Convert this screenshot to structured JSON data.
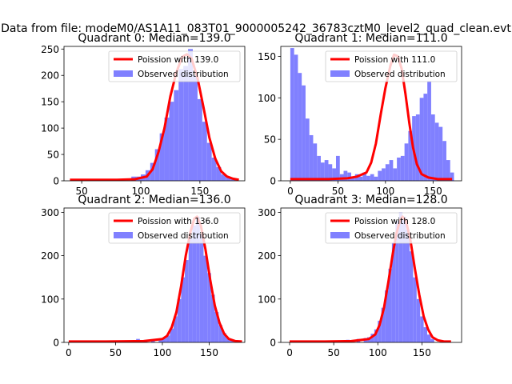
{
  "suptitle": "Data from file: modeM0/AS1A11_083T01_9000005242_36783cztM0_level2_quad_clean.evt",
  "colors": {
    "model": "#ff0000",
    "observed": "#8080ff"
  },
  "chart_data": [
    {
      "type": "bar",
      "title": "Quadrant 0: Median=139.0",
      "median": 139.0,
      "legend": [
        "Poission with 139.0",
        "Observed distribution"
      ],
      "legend_position": "top-right",
      "xlim": [
        35,
        188
      ],
      "ylim": [
        0,
        255
      ],
      "xticks": [
        50,
        100,
        150
      ],
      "yticks": [
        0,
        50,
        100,
        150,
        200,
        250
      ],
      "bin_width": 4,
      "bins": [
        [
          92,
          8
        ],
        [
          96,
          8
        ],
        [
          100,
          12
        ],
        [
          104,
          20
        ],
        [
          108,
          34
        ],
        [
          112,
          60
        ],
        [
          116,
          90
        ],
        [
          120,
          120
        ],
        [
          124,
          150
        ],
        [
          128,
          172
        ],
        [
          132,
          212
        ],
        [
          136,
          218
        ],
        [
          140,
          250
        ],
        [
          144,
          200
        ],
        [
          148,
          155
        ],
        [
          152,
          112
        ],
        [
          156,
          72
        ],
        [
          160,
          44
        ],
        [
          164,
          26
        ],
        [
          168,
          12
        ],
        [
          172,
          6
        ],
        [
          176,
          4
        ]
      ],
      "model": [
        [
          40,
          2
        ],
        [
          60,
          2
        ],
        [
          80,
          2
        ],
        [
          95,
          3
        ],
        [
          105,
          8
        ],
        [
          110,
          22
        ],
        [
          115,
          55
        ],
        [
          120,
          100
        ],
        [
          125,
          160
        ],
        [
          130,
          205
        ],
        [
          135,
          235
        ],
        [
          139,
          240
        ],
        [
          143,
          232
        ],
        [
          148,
          195
        ],
        [
          153,
          140
        ],
        [
          158,
          82
        ],
        [
          163,
          42
        ],
        [
          168,
          18
        ],
        [
          173,
          8
        ],
        [
          178,
          4
        ],
        [
          183,
          2
        ]
      ]
    },
    {
      "type": "bar",
      "title": "Quadrant 1: Median=111.0",
      "median": 111.0,
      "legend": [
        "Poission with 111.0",
        "Observed distribution"
      ],
      "legend_position": "top-right",
      "xlim": [
        -10,
        180
      ],
      "ylim": [
        0,
        162
      ],
      "xticks": [
        0,
        50,
        100,
        150
      ],
      "yticks": [
        0,
        50,
        100,
        150
      ],
      "bin_width": 4,
      "bins": [
        [
          0,
          160
        ],
        [
          4,
          152
        ],
        [
          8,
          130
        ],
        [
          12,
          115
        ],
        [
          16,
          75
        ],
        [
          20,
          55
        ],
        [
          24,
          45
        ],
        [
          28,
          30
        ],
        [
          32,
          22
        ],
        [
          36,
          25
        ],
        [
          40,
          20
        ],
        [
          44,
          15
        ],
        [
          48,
          30
        ],
        [
          52,
          8
        ],
        [
          56,
          12
        ],
        [
          60,
          10
        ],
        [
          64,
          5
        ],
        [
          68,
          8
        ],
        [
          72,
          5
        ],
        [
          76,
          10
        ],
        [
          80,
          6
        ],
        [
          84,
          8
        ],
        [
          88,
          5
        ],
        [
          92,
          12
        ],
        [
          96,
          15
        ],
        [
          100,
          20
        ],
        [
          104,
          25
        ],
        [
          108,
          15
        ],
        [
          112,
          28
        ],
        [
          116,
          30
        ],
        [
          120,
          45
        ],
        [
          124,
          60
        ],
        [
          128,
          78
        ],
        [
          132,
          80
        ],
        [
          136,
          100
        ],
        [
          140,
          105
        ],
        [
          144,
          120
        ],
        [
          148,
          80
        ],
        [
          152,
          70
        ],
        [
          156,
          65
        ],
        [
          160,
          48
        ],
        [
          164,
          25
        ],
        [
          168,
          10
        ]
      ],
      "model": [
        [
          0,
          2
        ],
        [
          20,
          2
        ],
        [
          40,
          2
        ],
        [
          60,
          3
        ],
        [
          70,
          5
        ],
        [
          80,
          10
        ],
        [
          85,
          22
        ],
        [
          90,
          45
        ],
        [
          95,
          80
        ],
        [
          100,
          112
        ],
        [
          105,
          138
        ],
        [
          109,
          152
        ],
        [
          113,
          150
        ],
        [
          117,
          135
        ],
        [
          121,
          105
        ],
        [
          125,
          70
        ],
        [
          129,
          40
        ],
        [
          133,
          20
        ],
        [
          138,
          8
        ],
        [
          145,
          4
        ],
        [
          155,
          2
        ],
        [
          170,
          2
        ]
      ]
    },
    {
      "type": "bar",
      "title": "Quadrant 2: Median=136.0",
      "median": 136.0,
      "legend": [
        "Poission with 136.0",
        "Observed distribution"
      ],
      "legend_position": "top-right",
      "xlim": [
        -5,
        188
      ],
      "ylim": [
        0,
        310
      ],
      "xticks": [
        0,
        50,
        100,
        150
      ],
      "yticks": [
        0,
        100,
        200,
        300
      ],
      "bin_width": 4,
      "bins": [
        [
          72,
          8
        ],
        [
          80,
          5
        ],
        [
          88,
          6
        ],
        [
          96,
          8
        ],
        [
          100,
          10
        ],
        [
          104,
          16
        ],
        [
          108,
          32
        ],
        [
          112,
          60
        ],
        [
          116,
          100
        ],
        [
          120,
          150
        ],
        [
          124,
          190
        ],
        [
          128,
          240
        ],
        [
          132,
          270
        ],
        [
          136,
          290
        ],
        [
          140,
          250
        ],
        [
          144,
          200
        ],
        [
          148,
          160
        ],
        [
          152,
          110
        ],
        [
          156,
          70
        ],
        [
          160,
          40
        ],
        [
          164,
          22
        ],
        [
          168,
          10
        ],
        [
          172,
          5
        ]
      ],
      "model": [
        [
          0,
          2
        ],
        [
          40,
          2
        ],
        [
          80,
          3
        ],
        [
          100,
          8
        ],
        [
          105,
          15
        ],
        [
          110,
          35
        ],
        [
          115,
          70
        ],
        [
          120,
          130
        ],
        [
          125,
          200
        ],
        [
          130,
          255
        ],
        [
          134,
          285
        ],
        [
          137,
          290
        ],
        [
          141,
          270
        ],
        [
          146,
          215
        ],
        [
          151,
          145
        ],
        [
          156,
          85
        ],
        [
          161,
          45
        ],
        [
          166,
          20
        ],
        [
          171,
          8
        ],
        [
          178,
          3
        ],
        [
          185,
          2
        ]
      ]
    },
    {
      "type": "bar",
      "title": "Quadrant 3: Median=128.0",
      "median": 128.0,
      "legend": [
        "Poission with 128.0",
        "Observed distribution"
      ],
      "legend_position": "top-right",
      "xlim": [
        -10,
        195
      ],
      "ylim": [
        0,
        310
      ],
      "xticks": [
        0,
        50,
        100,
        150
      ],
      "yticks": [
        0,
        100,
        200,
        300
      ],
      "bin_width": 4,
      "bins": [
        [
          64,
          6
        ],
        [
          76,
          8
        ],
        [
          84,
          10
        ],
        [
          88,
          12
        ],
        [
          92,
          20
        ],
        [
          96,
          30
        ],
        [
          100,
          50
        ],
        [
          104,
          80
        ],
        [
          108,
          120
        ],
        [
          112,
          170
        ],
        [
          116,
          230
        ],
        [
          120,
          280
        ],
        [
          124,
          300
        ],
        [
          128,
          290
        ],
        [
          132,
          260
        ],
        [
          136,
          210
        ],
        [
          140,
          150
        ],
        [
          144,
          100
        ],
        [
          148,
          60
        ],
        [
          152,
          35
        ],
        [
          156,
          18
        ],
        [
          160,
          8
        ]
      ],
      "model": [
        [
          0,
          2
        ],
        [
          40,
          2
        ],
        [
          70,
          3
        ],
        [
          90,
          8
        ],
        [
          97,
          18
        ],
        [
          102,
          40
        ],
        [
          107,
          80
        ],
        [
          112,
          140
        ],
        [
          117,
          205
        ],
        [
          121,
          250
        ],
        [
          125,
          280
        ],
        [
          128,
          290
        ],
        [
          132,
          280
        ],
        [
          137,
          235
        ],
        [
          142,
          170
        ],
        [
          147,
          110
        ],
        [
          152,
          60
        ],
        [
          157,
          30
        ],
        [
          162,
          12
        ],
        [
          168,
          5
        ],
        [
          175,
          2
        ],
        [
          183,
          2
        ]
      ]
    }
  ]
}
